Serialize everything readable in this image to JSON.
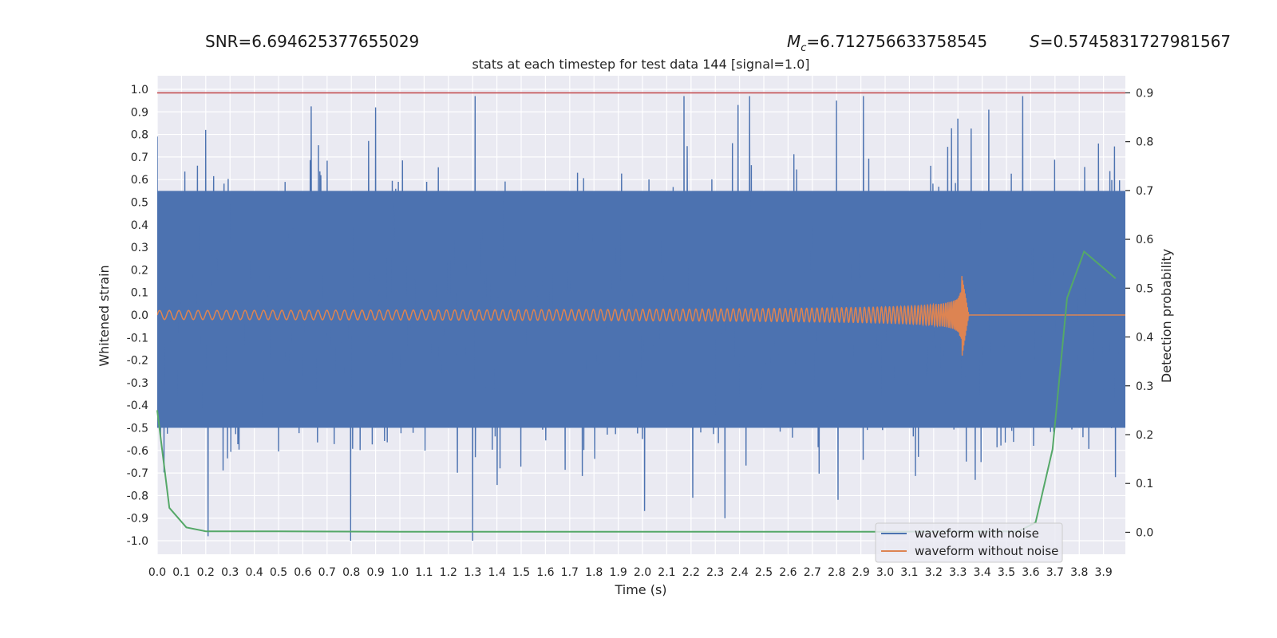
{
  "header": {
    "snr": "SNR=6.694625377655029",
    "mc_symbol": "M",
    "mc_sub": "c",
    "mc_value": "=6.712756633758545",
    "s_symbol": "S",
    "s_value": "=0.5745831727981567"
  },
  "chart_data": {
    "type": "line",
    "title": "stats at each timestep for test data 144 [signal=1.0]",
    "xlabel": "Time (s)",
    "ylabel": "Whitened strain",
    "y2label": "Detection probability",
    "xlim": [
      0.0,
      3.99
    ],
    "ylim": [
      -1.06,
      1.06
    ],
    "y2lim": [
      -0.045,
      0.935
    ],
    "xticks": [
      "0.0",
      "0.1",
      "0.2",
      "0.3",
      "0.4",
      "0.5",
      "0.6",
      "0.7",
      "0.8",
      "0.9",
      "1.0",
      "1.1",
      "1.2",
      "1.3",
      "1.4",
      "1.5",
      "1.6",
      "1.7",
      "1.8",
      "1.9",
      "2.0",
      "2.1",
      "2.2",
      "2.3",
      "2.4",
      "2.5",
      "2.6",
      "2.7",
      "2.8",
      "2.9",
      "3.0",
      "3.1",
      "3.2",
      "3.3",
      "3.4",
      "3.5",
      "3.6",
      "3.7",
      "3.8",
      "3.9"
    ],
    "yticks": [
      "1.0",
      "0.9",
      "0.8",
      "0.7",
      "0.6",
      "0.5",
      "0.4",
      "0.3",
      "0.2",
      "0.1",
      "0.0",
      "-0.1",
      "-0.2",
      "-0.3",
      "-0.4",
      "-0.5",
      "-0.6",
      "-0.7",
      "-0.8",
      "-0.9",
      "-1.0"
    ],
    "y2ticks": [
      "0.9",
      "0.8",
      "0.7",
      "0.6",
      "0.5",
      "0.4",
      "0.3",
      "0.2",
      "0.1",
      "0.0"
    ],
    "threshold": 0.9,
    "noise_band": [
      -0.5,
      0.55
    ],
    "merger_time": 3.315,
    "series": [
      {
        "name": "waveform with noise",
        "color": "#4c72b0",
        "axis": "left",
        "spikes": [
          [
            0.2,
            0.82
          ],
          [
            0.21,
            -0.98
          ],
          [
            0.9,
            0.92
          ],
          [
            1.31,
            0.97
          ],
          [
            1.3,
            -1.0
          ],
          [
            2.8,
            0.95
          ],
          [
            2.34,
            -0.9
          ],
          [
            3.3,
            0.87
          ]
        ]
      },
      {
        "name": "waveform without noise",
        "color": "#dd8452",
        "axis": "left"
      },
      {
        "name": "detection probability",
        "color": "#55a868",
        "axis": "right",
        "x": [
          0.0,
          0.05,
          0.12,
          0.2,
          0.5,
          1.0,
          2.0,
          3.0,
          3.55,
          3.62,
          3.69,
          3.75,
          3.82,
          3.95
        ],
        "y": [
          0.25,
          0.05,
          0.01,
          0.002,
          0.002,
          0.001,
          0.001,
          0.001,
          0.002,
          0.02,
          0.17,
          0.48,
          0.575,
          0.52
        ]
      }
    ]
  }
}
